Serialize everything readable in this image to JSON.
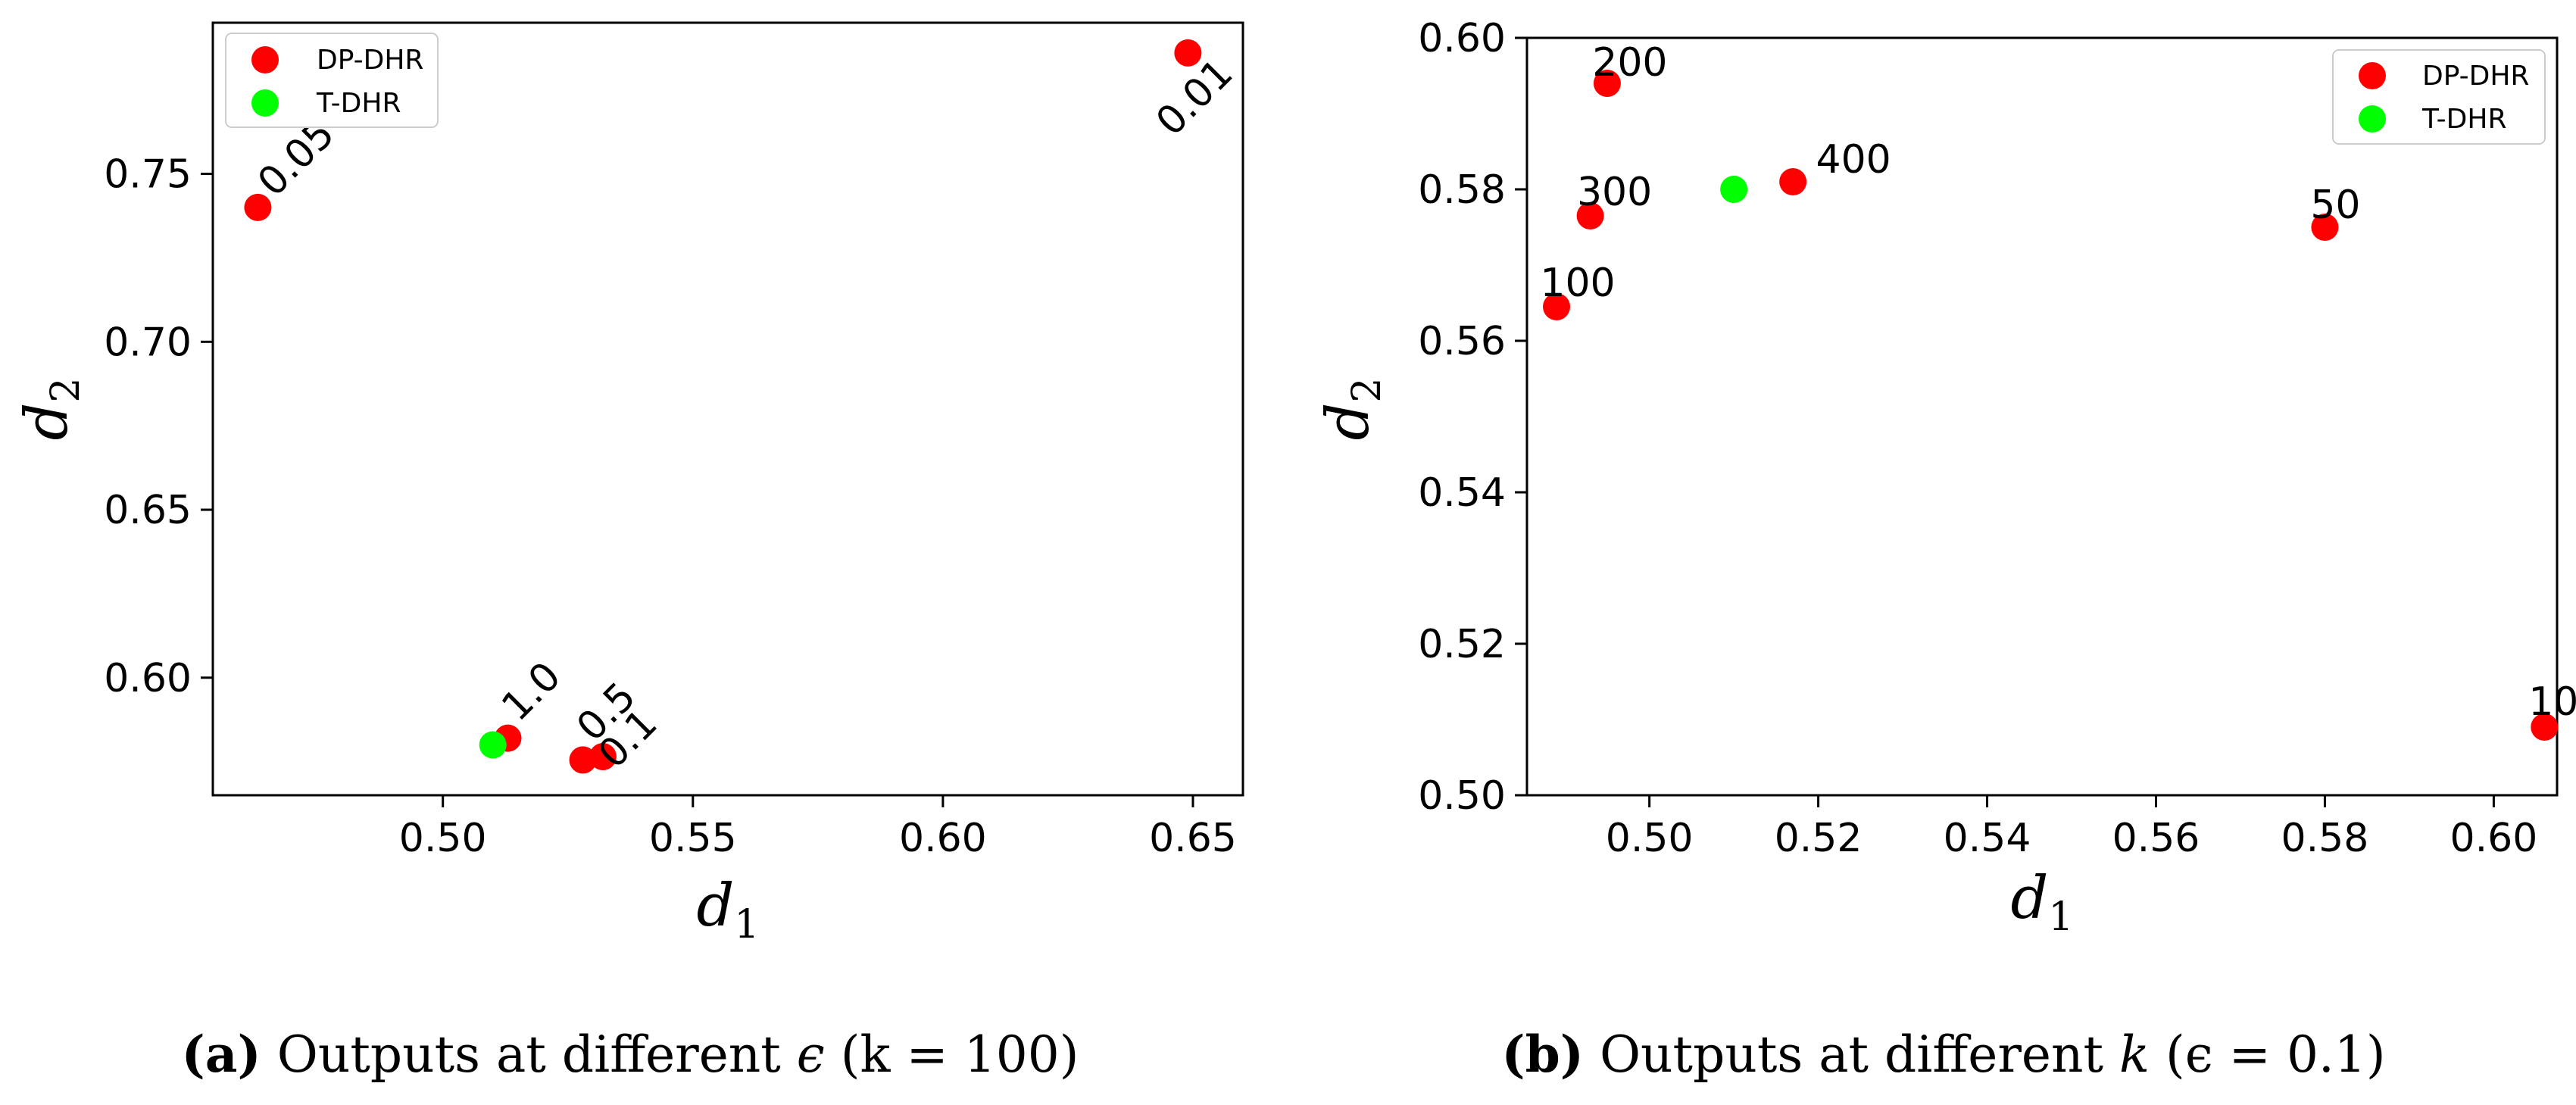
{
  "chart_data": [
    {
      "type": "scatter",
      "xlabel": "d",
      "xlabel_sub": "1",
      "ylabel": "d",
      "ylabel_sub": "2",
      "xlim": [
        0.454,
        0.66
      ],
      "ylim": [
        0.565,
        0.795
      ],
      "xticks": [
        "0.50",
        "0.55",
        "0.60",
        "0.65"
      ],
      "yticks": [
        "0.60",
        "0.65",
        "0.70",
        "0.75"
      ],
      "legend_position": "top-left",
      "label_rotation": -45,
      "series": [
        {
          "name": "DP-DHR",
          "color": "#ff0000",
          "points": [
            {
              "x": 0.463,
              "y": 0.74,
              "label": "0.05"
            },
            {
              "x": 0.649,
              "y": 0.786,
              "label": "0.01"
            },
            {
              "x": 0.513,
              "y": 0.582,
              "label": "1.0"
            },
            {
              "x": 0.528,
              "y": 0.5755,
              "label": "0.5"
            },
            {
              "x": 0.532,
              "y": 0.5765,
              "label": "0.1"
            }
          ]
        },
        {
          "name": "T-DHR",
          "color": "#00ff00",
          "points": [
            {
              "x": 0.51,
              "y": 0.58,
              "label": ""
            }
          ]
        }
      ]
    },
    {
      "type": "scatter",
      "xlabel": "d",
      "xlabel_sub": "1",
      "ylabel": "d",
      "ylabel_sub": "2",
      "xlim": [
        0.4855,
        0.6075
      ],
      "ylim": [
        0.5,
        0.6
      ],
      "xticks": [
        "0.50",
        "0.52",
        "0.54",
        "0.56",
        "0.58",
        "0.60"
      ],
      "yticks": [
        "0.50",
        "0.52",
        "0.54",
        "0.56",
        "0.58",
        "0.60"
      ],
      "legend_position": "top-right",
      "label_rotation": 0,
      "series": [
        {
          "name": "DP-DHR",
          "color": "#ff0000",
          "points": [
            {
              "x": 0.495,
              "y": 0.594,
              "label": "200"
            },
            {
              "x": 0.493,
              "y": 0.5765,
              "label": "300"
            },
            {
              "x": 0.517,
              "y": 0.581,
              "label": "400"
            },
            {
              "x": 0.489,
              "y": 0.5645,
              "label": "100"
            },
            {
              "x": 0.58,
              "y": 0.575,
              "label": "50"
            },
            {
              "x": 0.606,
              "y": 0.509,
              "label": "10"
            }
          ]
        },
        {
          "name": "T-DHR",
          "color": "#00ff00",
          "points": [
            {
              "x": 0.51,
              "y": 0.58,
              "label": ""
            }
          ]
        }
      ]
    }
  ],
  "captions": [
    {
      "tag": "(a)",
      "text": "Outputs at different",
      "symbol": "ϵ",
      "cond": "(k = 100)"
    },
    {
      "tag": "(b)",
      "text": "Outputs at different",
      "symbol": "k",
      "cond": "(ϵ = 0.1)"
    }
  ]
}
